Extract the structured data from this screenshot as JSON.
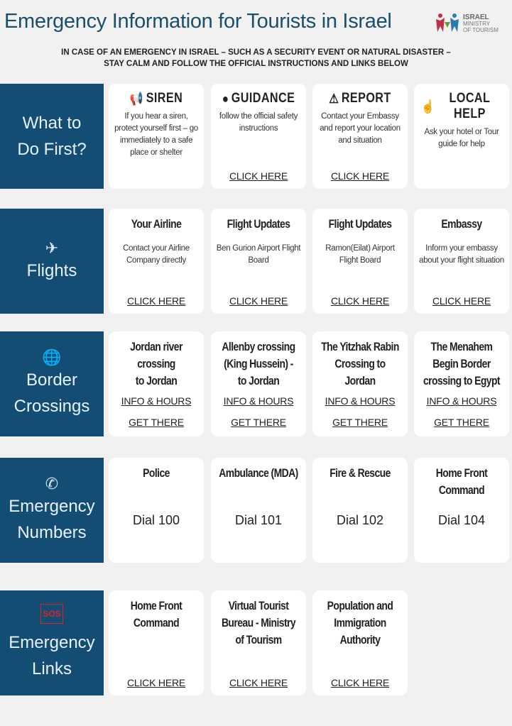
{
  "header": {
    "title": "Emergency Information for Tourists in Israel",
    "logo": {
      "line1": "ISRAEL",
      "line2": "MINISTRY",
      "line3": "OF TOURISM"
    },
    "intro_line1": "IN CASE OF AN EMERGENCY IN ISRAEL – SUCH AS A SECURITY EVENT OR NATURAL DISASTER –",
    "intro_line2": "STAY CALM AND FOLLOW THE OFFICIAL INSTRUCTIONS AND LINKS BELOW"
  },
  "colors": {
    "side": "#144d73",
    "title": "#1b4e6b",
    "background": "#f1f1f1"
  },
  "sections": [
    {
      "id": "what-to-do-first",
      "lines": [
        "What to",
        "Do First?"
      ],
      "icon": "",
      "cards": [
        {
          "icon": "siren-icon",
          "title": "SIREN",
          "body": "If you hear a siren, protect yourself first – go immediately to a safe place or shelter",
          "links": []
        },
        {
          "icon": "guidance-icon",
          "title": "GUIDANCE",
          "body": "follow the official safety instructions",
          "links": [
            "CLICK HERE"
          ]
        },
        {
          "icon": "warning-icon",
          "title": "REPORT",
          "body": "Contact your Embassy and report your location and situation",
          "links": [
            "CLICK HERE"
          ]
        },
        {
          "icon": "help-sign-icon",
          "title": "LOCAL HELP",
          "body": "Ask your hotel or Tour guide for help",
          "links": []
        }
      ]
    },
    {
      "id": "flights",
      "lines": [
        "Flights"
      ],
      "icon": "airplane-icon",
      "cards": [
        {
          "title": "Your Airline",
          "body": "Contact your Airline Company directly",
          "links": [
            "CLICK HERE"
          ]
        },
        {
          "title": "Flight Updates",
          "body": "Ben Gurion Airport Flight Board",
          "links": [
            "CLICK HERE"
          ]
        },
        {
          "title": "Flight Updates",
          "body": "Ramon(Eilat) Airport Flight Board",
          "links": [
            "CLICK HERE"
          ]
        },
        {
          "title": "Embassy",
          "body": "Inform your embassy about your flight situation",
          "links": [
            "CLICK HERE"
          ]
        }
      ]
    },
    {
      "id": "border-crossings",
      "lines": [
        "Border",
        "Crossings"
      ],
      "icon": "globe-icon",
      "cards": [
        {
          "title": "Jordan river\ncrossing\nto Jordan",
          "links": [
            "INFO & HOURS",
            "GET THERE"
          ]
        },
        {
          "title": "Allenby crossing\n(King Hussein) -\nto Jordan",
          "links": [
            "INFO & HOURS",
            "GET THERE"
          ]
        },
        {
          "title": "The Yitzhak Rabin\nCrossing to\nJordan",
          "links": [
            "INFO & HOURS",
            "GET THERE"
          ]
        },
        {
          "title": "The Menahem\nBegin Border\ncrossing to Egypt",
          "links": [
            "INFO & HOURS",
            "GET THERE"
          ]
        }
      ]
    },
    {
      "id": "emergency-numbers",
      "lines": [
        "Emergency",
        "Numbers"
      ],
      "icon": "phone-icon",
      "cards": [
        {
          "title": "Police",
          "dial": "Dial 100"
        },
        {
          "title": "Ambulance (MDA)",
          "dial": "Dial 101"
        },
        {
          "title": "Fire & Rescue",
          "dial": "Dial 102"
        },
        {
          "title": "Home Front\nCommand",
          "dial": "Dial 104"
        }
      ]
    },
    {
      "id": "emergency-links",
      "lines": [
        "Emergency",
        "Links"
      ],
      "icon": "sos-icon",
      "cards": [
        {
          "title": "Home Front\nCommand",
          "links": [
            "CLICK HERE"
          ]
        },
        {
          "title": "Virtual Tourist\nBureau - Ministry\nof Tourism",
          "links": [
            "CLICK HERE"
          ]
        },
        {
          "title": "Population and\nImmigration\nAuthority",
          "links": [
            "CLICK HERE"
          ]
        }
      ]
    }
  ]
}
